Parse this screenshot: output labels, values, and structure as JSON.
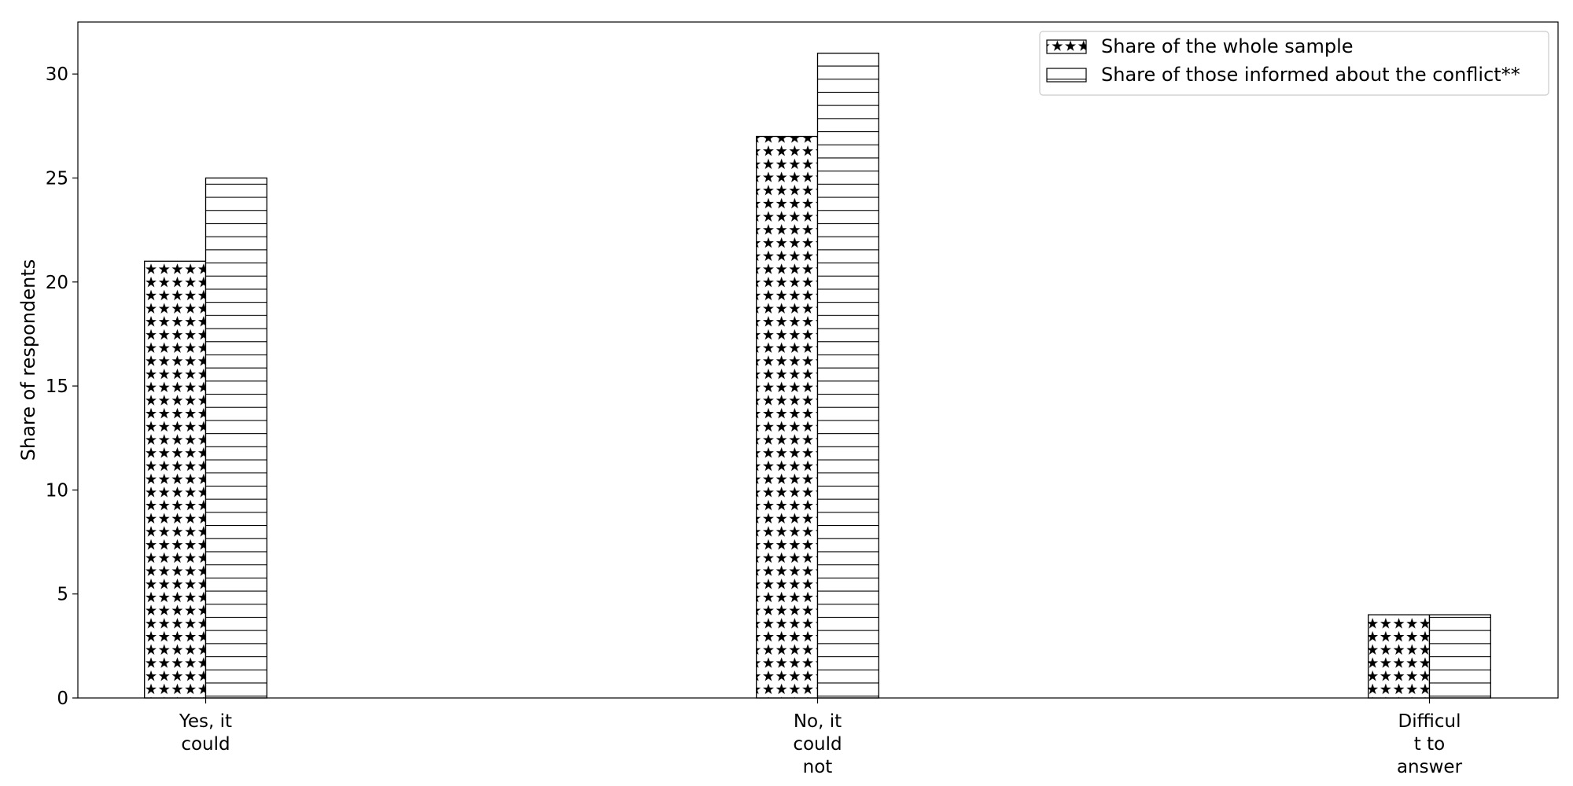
{
  "chart_data": {
    "type": "bar",
    "title": "",
    "xlabel": "",
    "ylabel": "Share of respondents",
    "categories": [
      [
        "Yes, it",
        "could"
      ],
      [
        "No, it",
        "could",
        "not"
      ],
      [
        "Difficul",
        "t to",
        "answer"
      ]
    ],
    "series": [
      {
        "name": "Share of the whole sample",
        "pattern": "stars",
        "values": [
          21,
          27,
          4
        ]
      },
      {
        "name": "Share of those informed about the conflict**",
        "pattern": "horizontal-lines",
        "values": [
          25,
          31,
          4
        ]
      }
    ],
    "ylim": [
      0,
      32.5
    ],
    "yticks": [
      0,
      5,
      10,
      15,
      20,
      25,
      30
    ],
    "grid": false,
    "legend_position": "top-right",
    "colors": {
      "bar_fill": "#ffffff",
      "edge": "#000000"
    }
  }
}
